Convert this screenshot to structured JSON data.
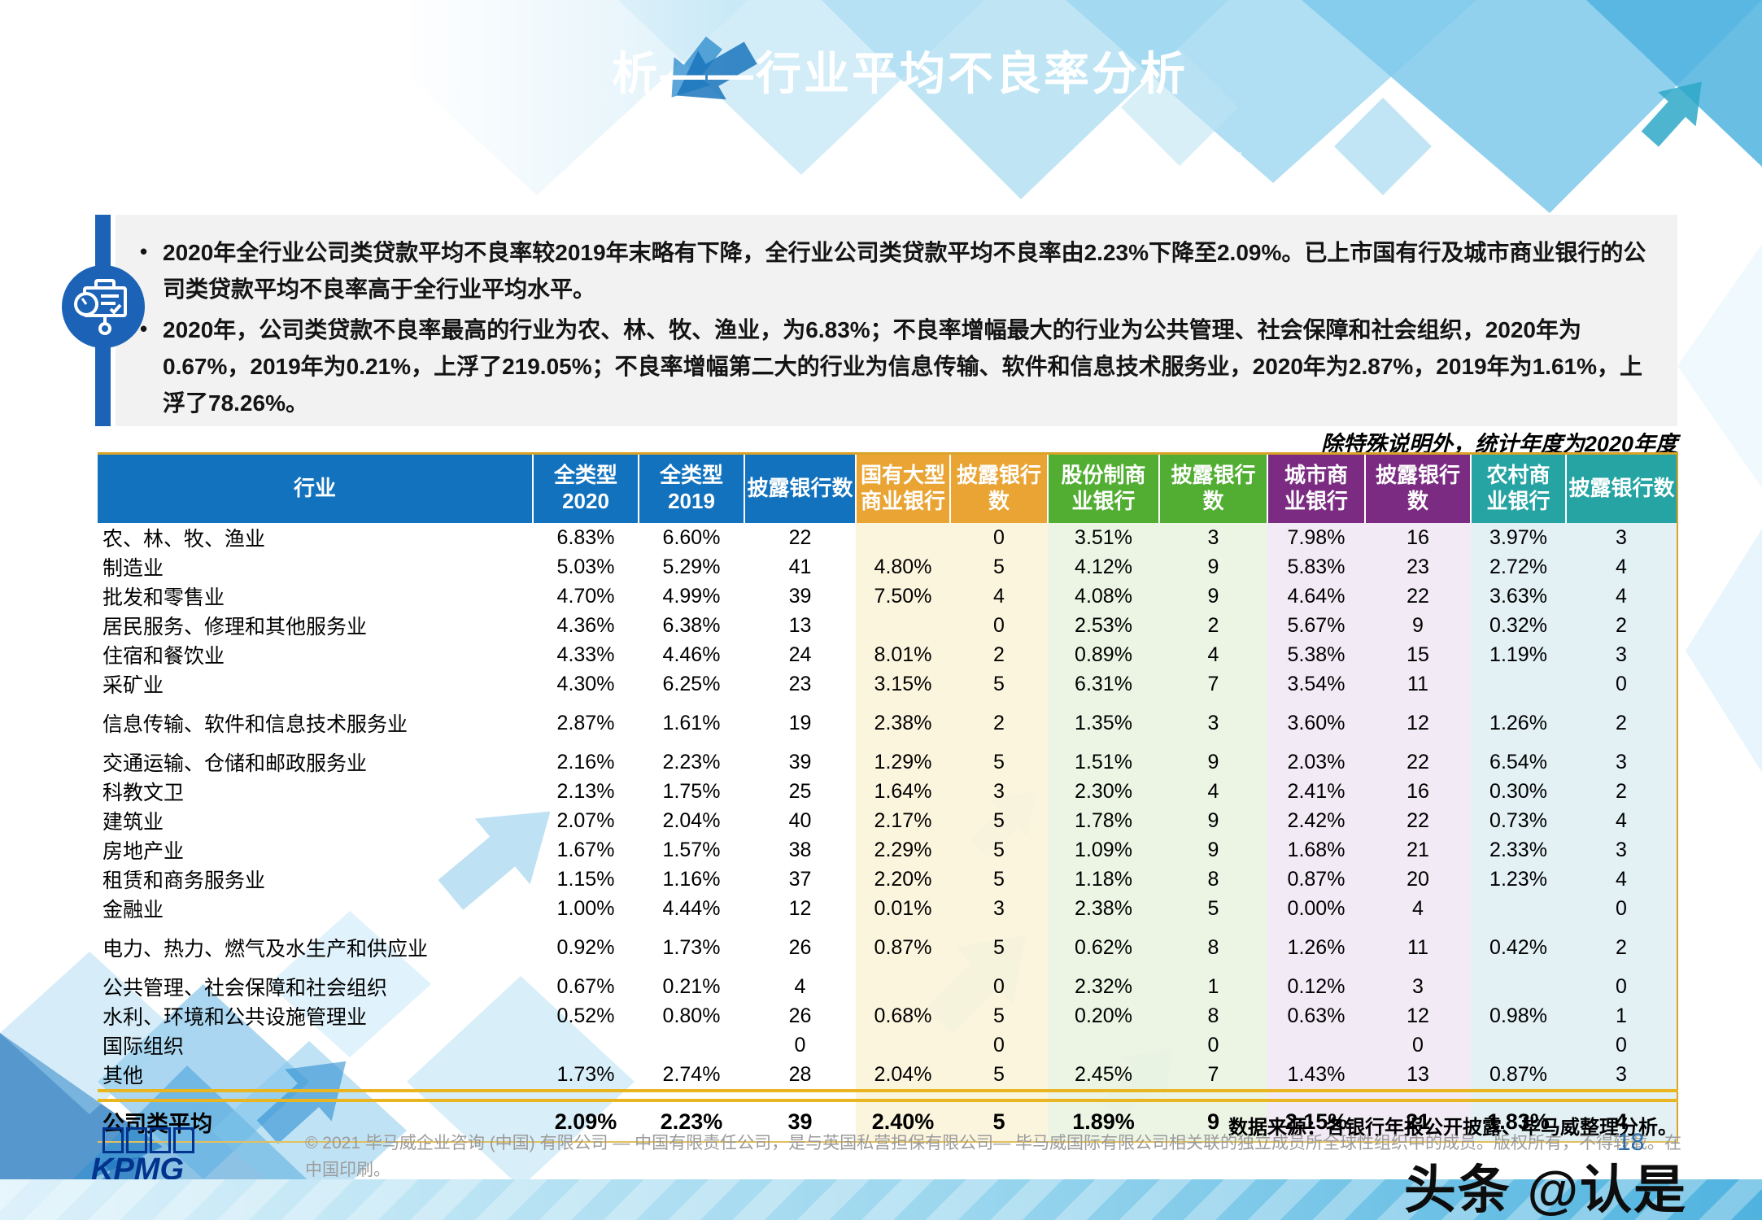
{
  "slide": {
    "title": "析——行业平均不良率分析",
    "page_number": "18",
    "watermark": "头条 @认是"
  },
  "summary_panel": {
    "icon": "presentation-chart-icon",
    "bullets": [
      "2020年全行业公司类贷款平均不良率较2019年末略有下降，全行业公司类贷款平均不良率由2.23%下降至2.09%。已上市国有行及城市商业银行的公司类贷款平均不良率高于全行业平均水平。",
      "2020年，公司类贷款不良率最高的行业为农、林、牧、渔业，为6.83%；不良率增幅最大的行业为公共管理、社会保障和社会组织，2020年为0.67%，2019年为0.21%，上浮了219.05%；不良率增幅第二大的行业为信息传输、软件和信息技术服务业，2020年为2.87%，2019年为1.61%，上浮了78.26%。"
    ]
  },
  "table_note": "除特殊说明外，统计年度为2020年度",
  "table": {
    "columns": [
      {
        "label": "行业",
        "group": "blue"
      },
      {
        "label": "全类型\n2020",
        "group": "blue"
      },
      {
        "label": "全类型\n2019",
        "group": "blue"
      },
      {
        "label": "披露银行数",
        "group": "blue"
      },
      {
        "label": "国有大型\n商业银行",
        "group": "orange"
      },
      {
        "label": "披露银行\n数",
        "group": "orange"
      },
      {
        "label": "股份制商\n业银行",
        "group": "green"
      },
      {
        "label": "披露银行数",
        "group": "green"
      },
      {
        "label": "城市商\n业银行",
        "group": "purple"
      },
      {
        "label": "披露银行数",
        "group": "purple"
      },
      {
        "label": "农村商\n业银行",
        "group": "teal"
      },
      {
        "label": "披露银行数",
        "group": "teal"
      }
    ],
    "rows": [
      {
        "industry": "农、林、牧、渔业",
        "values": [
          "6.83%",
          "6.60%",
          "22",
          "",
          "0",
          "3.51%",
          "3",
          "7.98%",
          "16",
          "3.97%",
          "3"
        ],
        "gap": false
      },
      {
        "industry": "制造业",
        "values": [
          "5.03%",
          "5.29%",
          "41",
          "4.80%",
          "5",
          "4.12%",
          "9",
          "5.83%",
          "23",
          "2.72%",
          "4"
        ],
        "gap": false
      },
      {
        "industry": "批发和零售业",
        "values": [
          "4.70%",
          "4.99%",
          "39",
          "7.50%",
          "4",
          "4.08%",
          "9",
          "4.64%",
          "22",
          "3.63%",
          "4"
        ],
        "gap": false
      },
      {
        "industry": "居民服务、修理和其他服务业",
        "values": [
          "4.36%",
          "6.38%",
          "13",
          "",
          "0",
          "2.53%",
          "2",
          "5.67%",
          "9",
          "0.32%",
          "2"
        ],
        "gap": false
      },
      {
        "industry": "住宿和餐饮业",
        "values": [
          "4.33%",
          "4.46%",
          "24",
          "8.01%",
          "2",
          "0.89%",
          "4",
          "5.38%",
          "15",
          "1.19%",
          "3"
        ],
        "gap": false
      },
      {
        "industry": "采矿业",
        "values": [
          "4.30%",
          "6.25%",
          "23",
          "3.15%",
          "5",
          "6.31%",
          "7",
          "3.54%",
          "11",
          "",
          "0"
        ],
        "gap": false
      },
      {
        "industry": "信息传输、软件和信息技术服务业",
        "values": [
          "2.87%",
          "1.61%",
          "19",
          "2.38%",
          "2",
          "1.35%",
          "3",
          "3.60%",
          "12",
          "1.26%",
          "2"
        ],
        "gap": true
      },
      {
        "industry": "交通运输、仓储和邮政服务业",
        "values": [
          "2.16%",
          "2.23%",
          "39",
          "1.29%",
          "5",
          "1.51%",
          "9",
          "2.03%",
          "22",
          "6.54%",
          "3"
        ],
        "gap": true
      },
      {
        "industry": "科教文卫",
        "values": [
          "2.13%",
          "1.75%",
          "25",
          "1.64%",
          "3",
          "2.30%",
          "4",
          "2.41%",
          "16",
          "0.30%",
          "2"
        ],
        "gap": false
      },
      {
        "industry": "建筑业",
        "values": [
          "2.07%",
          "2.04%",
          "40",
          "2.17%",
          "5",
          "1.78%",
          "9",
          "2.42%",
          "22",
          "0.73%",
          "4"
        ],
        "gap": false
      },
      {
        "industry": "房地产业",
        "values": [
          "1.67%",
          "1.57%",
          "38",
          "2.29%",
          "5",
          "1.09%",
          "9",
          "1.68%",
          "21",
          "2.33%",
          "3"
        ],
        "gap": false
      },
      {
        "industry": "租赁和商务服务业",
        "values": [
          "1.15%",
          "1.16%",
          "37",
          "2.20%",
          "5",
          "1.18%",
          "8",
          "0.87%",
          "20",
          "1.23%",
          "4"
        ],
        "gap": false
      },
      {
        "industry": "金融业",
        "values": [
          "1.00%",
          "4.44%",
          "12",
          "0.01%",
          "3",
          "2.38%",
          "5",
          "0.00%",
          "4",
          "",
          "0"
        ],
        "gap": false
      },
      {
        "industry": "电力、热力、燃气及水生产和供应业",
        "values": [
          "0.92%",
          "1.73%",
          "26",
          "0.87%",
          "5",
          "0.62%",
          "8",
          "1.26%",
          "11",
          "0.42%",
          "2"
        ],
        "gap": true
      },
      {
        "industry": "公共管理、社会保障和社会组织",
        "values": [
          "0.67%",
          "0.21%",
          "4",
          "",
          "0",
          "2.32%",
          "1",
          "0.12%",
          "3",
          "",
          "0"
        ],
        "gap": true
      },
      {
        "industry": "水利、环境和公共设施管理业",
        "values": [
          "0.52%",
          "0.80%",
          "26",
          "0.68%",
          "5",
          "0.20%",
          "8",
          "0.63%",
          "12",
          "0.98%",
          "1"
        ],
        "gap": false
      },
      {
        "industry": "国际组织",
        "values": [
          "",
          "",
          "0",
          "",
          "0",
          "",
          "0",
          "",
          "0",
          "",
          "0"
        ],
        "gap": false
      },
      {
        "industry": "其他",
        "values": [
          "1.73%",
          "2.74%",
          "28",
          "2.04%",
          "5",
          "2.45%",
          "7",
          "1.43%",
          "13",
          "0.87%",
          "3"
        ],
        "gap": false
      }
    ],
    "summary": {
      "industry": "公司类平均",
      "values": [
        "2.09%",
        "2.23%",
        "39",
        "2.40%",
        "5",
        "1.89%",
        "9",
        "2.15%",
        "21",
        "1.83%",
        "4"
      ]
    }
  },
  "source": "数据来源：各银行年报公开披露、毕马威整理分析。",
  "footer": {
    "logo": "KPMG",
    "copyright": "© 2021 毕马威企业咨询 (中国) 有限公司 — 中国有限责任公司，是与英国私营担保有限公司— 毕马威国际有限公司相关联的独立成员所全球性组织中的成员。版权所有，不得转载。在中国印刷。"
  },
  "colors": {
    "header_blue": "#1272BE",
    "header_orange": "#E9A434",
    "header_green": "#52AE32",
    "header_purple": "#7B2C82",
    "header_teal": "#26A3A3",
    "gold_rule": "#E9B621",
    "panel_gray": "#F2F2F2",
    "panel_bar_blue": "#1C63B7",
    "kpmg_blue": "#00338D"
  }
}
